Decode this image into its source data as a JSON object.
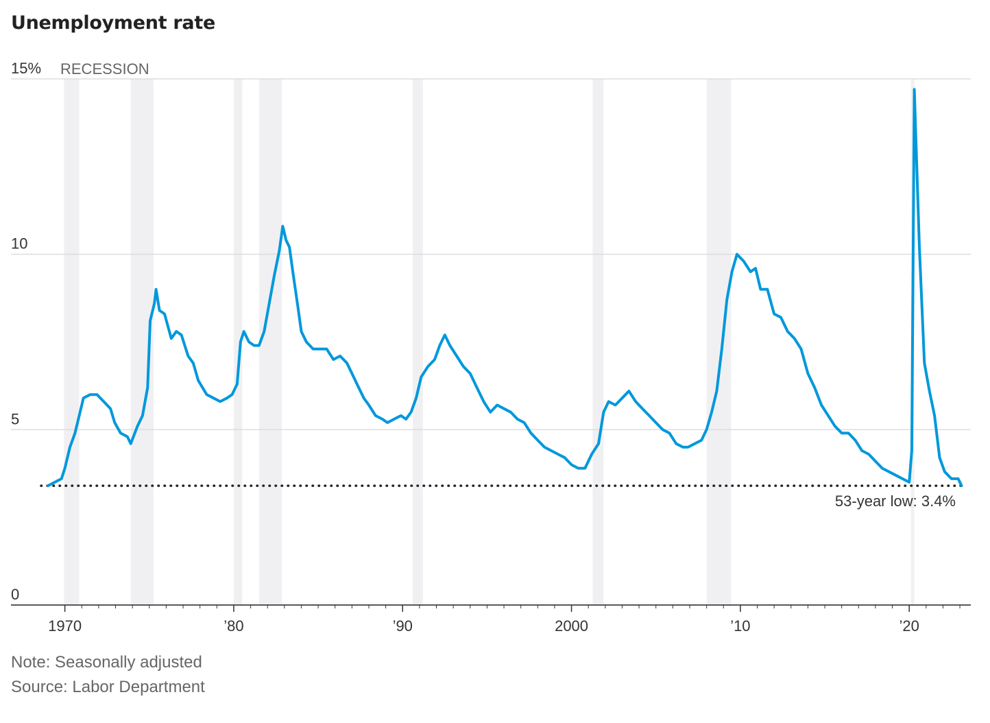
{
  "chart_data": {
    "type": "line",
    "title": "Unemployment rate",
    "xlabel": "",
    "ylabel": "",
    "y_unit": "%",
    "ylim": [
      0,
      15
    ],
    "xlim": [
      1969.0,
      2023.2
    ],
    "y_ticks": [
      {
        "value": 0,
        "label": "0"
      },
      {
        "value": 5,
        "label": "5"
      },
      {
        "value": 10,
        "label": "10"
      },
      {
        "value": 15,
        "label": "15%"
      }
    ],
    "x_ticks": [
      {
        "value": 1970,
        "label": "1970"
      },
      {
        "value": 1980,
        "label": "’80"
      },
      {
        "value": 1990,
        "label": "’90"
      },
      {
        "value": 2000,
        "label": "2000"
      },
      {
        "value": 2010,
        "label": "’10"
      },
      {
        "value": 2020,
        "label": "’20"
      }
    ],
    "legend": [
      {
        "name": "RECESSION",
        "type": "shaded-band",
        "color": "#f0f0f3"
      }
    ],
    "recessions": [
      [
        1969.95,
        1970.85
      ],
      [
        1973.9,
        1975.25
      ],
      [
        1980.0,
        1980.5
      ],
      [
        1981.5,
        1982.85
      ],
      [
        1990.6,
        1991.2
      ],
      [
        2001.25,
        2001.9
      ],
      [
        2008.0,
        2009.45
      ],
      [
        2020.1,
        2020.3
      ]
    ],
    "reference_line": {
      "value": 3.4,
      "label": "53-year low: 3.4%",
      "style": "dotted"
    },
    "series": [
      {
        "name": "Unemployment rate",
        "color": "#0098db",
        "points": [
          [
            1969.0,
            3.4
          ],
          [
            1969.4,
            3.5
          ],
          [
            1969.8,
            3.6
          ],
          [
            1970.0,
            3.9
          ],
          [
            1970.3,
            4.5
          ],
          [
            1970.6,
            4.9
          ],
          [
            1970.9,
            5.5
          ],
          [
            1971.1,
            5.9
          ],
          [
            1971.5,
            6.0
          ],
          [
            1971.9,
            6.0
          ],
          [
            1972.3,
            5.8
          ],
          [
            1972.7,
            5.6
          ],
          [
            1972.95,
            5.2
          ],
          [
            1973.3,
            4.9
          ],
          [
            1973.7,
            4.8
          ],
          [
            1973.9,
            4.6
          ],
          [
            1974.3,
            5.1
          ],
          [
            1974.6,
            5.4
          ],
          [
            1974.9,
            6.2
          ],
          [
            1975.05,
            8.1
          ],
          [
            1975.3,
            8.6
          ],
          [
            1975.4,
            9.0
          ],
          [
            1975.6,
            8.4
          ],
          [
            1975.9,
            8.3
          ],
          [
            1976.3,
            7.6
          ],
          [
            1976.6,
            7.8
          ],
          [
            1976.9,
            7.7
          ],
          [
            1977.3,
            7.1
          ],
          [
            1977.6,
            6.9
          ],
          [
            1977.9,
            6.4
          ],
          [
            1978.4,
            6.0
          ],
          [
            1978.8,
            5.9
          ],
          [
            1979.2,
            5.8
          ],
          [
            1979.6,
            5.9
          ],
          [
            1979.9,
            6.0
          ],
          [
            1980.2,
            6.3
          ],
          [
            1980.4,
            7.5
          ],
          [
            1980.6,
            7.8
          ],
          [
            1980.9,
            7.5
          ],
          [
            1981.2,
            7.4
          ],
          [
            1981.5,
            7.4
          ],
          [
            1981.8,
            7.8
          ],
          [
            1982.1,
            8.6
          ],
          [
            1982.4,
            9.4
          ],
          [
            1982.7,
            10.1
          ],
          [
            1982.9,
            10.8
          ],
          [
            1983.1,
            10.4
          ],
          [
            1983.3,
            10.2
          ],
          [
            1983.5,
            9.5
          ],
          [
            1983.8,
            8.5
          ],
          [
            1984.0,
            7.8
          ],
          [
            1984.3,
            7.5
          ],
          [
            1984.7,
            7.3
          ],
          [
            1985.0,
            7.3
          ],
          [
            1985.5,
            7.3
          ],
          [
            1985.9,
            7.0
          ],
          [
            1986.3,
            7.1
          ],
          [
            1986.7,
            6.9
          ],
          [
            1987.0,
            6.6
          ],
          [
            1987.3,
            6.3
          ],
          [
            1987.7,
            5.9
          ],
          [
            1988.0,
            5.7
          ],
          [
            1988.4,
            5.4
          ],
          [
            1988.8,
            5.3
          ],
          [
            1989.1,
            5.2
          ],
          [
            1989.5,
            5.3
          ],
          [
            1989.9,
            5.4
          ],
          [
            1990.2,
            5.3
          ],
          [
            1990.5,
            5.5
          ],
          [
            1990.8,
            5.9
          ],
          [
            1991.1,
            6.5
          ],
          [
            1991.5,
            6.8
          ],
          [
            1991.9,
            7.0
          ],
          [
            1992.2,
            7.4
          ],
          [
            1992.5,
            7.7
          ],
          [
            1992.8,
            7.4
          ],
          [
            1993.2,
            7.1
          ],
          [
            1993.6,
            6.8
          ],
          [
            1994.0,
            6.6
          ],
          [
            1994.4,
            6.2
          ],
          [
            1994.8,
            5.8
          ],
          [
            1995.2,
            5.5
          ],
          [
            1995.6,
            5.7
          ],
          [
            1996.0,
            5.6
          ],
          [
            1996.4,
            5.5
          ],
          [
            1996.8,
            5.3
          ],
          [
            1997.2,
            5.2
          ],
          [
            1997.6,
            4.9
          ],
          [
            1998.0,
            4.7
          ],
          [
            1998.4,
            4.5
          ],
          [
            1998.8,
            4.4
          ],
          [
            1999.2,
            4.3
          ],
          [
            1999.6,
            4.2
          ],
          [
            2000.0,
            4.0
          ],
          [
            2000.4,
            3.9
          ],
          [
            2000.8,
            3.9
          ],
          [
            2001.2,
            4.3
          ],
          [
            2001.6,
            4.6
          ],
          [
            2001.9,
            5.5
          ],
          [
            2002.2,
            5.8
          ],
          [
            2002.6,
            5.7
          ],
          [
            2003.0,
            5.9
          ],
          [
            2003.4,
            6.1
          ],
          [
            2003.8,
            5.8
          ],
          [
            2004.2,
            5.6
          ],
          [
            2004.6,
            5.4
          ],
          [
            2005.0,
            5.2
          ],
          [
            2005.4,
            5.0
          ],
          [
            2005.8,
            4.9
          ],
          [
            2006.2,
            4.6
          ],
          [
            2006.6,
            4.5
          ],
          [
            2006.9,
            4.5
          ],
          [
            2007.3,
            4.6
          ],
          [
            2007.7,
            4.7
          ],
          [
            2008.0,
            5.0
          ],
          [
            2008.3,
            5.5
          ],
          [
            2008.6,
            6.1
          ],
          [
            2008.9,
            7.3
          ],
          [
            2009.2,
            8.7
          ],
          [
            2009.5,
            9.5
          ],
          [
            2009.8,
            10.0
          ],
          [
            2010.2,
            9.8
          ],
          [
            2010.6,
            9.5
          ],
          [
            2010.9,
            9.6
          ],
          [
            2011.2,
            9.0
          ],
          [
            2011.6,
            9.0
          ],
          [
            2012.0,
            8.3
          ],
          [
            2012.4,
            8.2
          ],
          [
            2012.8,
            7.8
          ],
          [
            2013.2,
            7.6
          ],
          [
            2013.6,
            7.3
          ],
          [
            2014.0,
            6.6
          ],
          [
            2014.4,
            6.2
          ],
          [
            2014.8,
            5.7
          ],
          [
            2015.2,
            5.4
          ],
          [
            2015.6,
            5.1
          ],
          [
            2016.0,
            4.9
          ],
          [
            2016.4,
            4.9
          ],
          [
            2016.8,
            4.7
          ],
          [
            2017.2,
            4.4
          ],
          [
            2017.6,
            4.3
          ],
          [
            2018.0,
            4.1
          ],
          [
            2018.4,
            3.9
          ],
          [
            2018.8,
            3.8
          ],
          [
            2019.2,
            3.7
          ],
          [
            2019.6,
            3.6
          ],
          [
            2020.0,
            3.5
          ],
          [
            2020.15,
            4.4
          ],
          [
            2020.3,
            14.7
          ],
          [
            2020.6,
            10.2
          ],
          [
            2020.9,
            6.9
          ],
          [
            2021.2,
            6.1
          ],
          [
            2021.5,
            5.4
          ],
          [
            2021.8,
            4.2
          ],
          [
            2022.1,
            3.8
          ],
          [
            2022.5,
            3.6
          ],
          [
            2022.9,
            3.6
          ],
          [
            2023.1,
            3.4
          ]
        ]
      }
    ]
  },
  "notes": {
    "note": "Note: Seasonally adjusted",
    "source": "Source: Labor Department"
  }
}
